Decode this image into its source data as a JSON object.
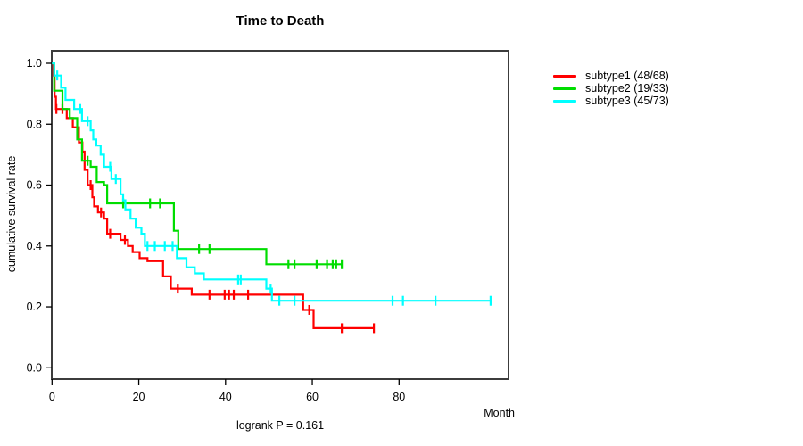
{
  "annotation": "logrank P = 0.161",
  "legend": {
    "items": [
      {
        "label": "subtype1 (48/68)",
        "color": "#ff0000"
      },
      {
        "label": "subtype2 (19/33)",
        "color": "#00dd00"
      },
      {
        "label": "subtype3 (45/73)",
        "color": "#00ffff"
      }
    ]
  },
  "chart_data": {
    "type": "line",
    "subtype": "kaplan-meier-step",
    "title": "Time to Death",
    "xlabel": "Month",
    "ylabel": "cumulative survival rate",
    "xlim": [
      0,
      105
    ],
    "ylim": [
      0,
      1.0
    ],
    "grid": false,
    "legend_position": "right-outside",
    "x_ticks": [
      {
        "v": 0,
        "label": "0"
      },
      {
        "v": 20,
        "label": "20"
      },
      {
        "v": 40,
        "label": "40"
      },
      {
        "v": 60,
        "label": "60"
      },
      {
        "v": 80,
        "label": "80"
      }
    ],
    "y_ticks": [
      {
        "v": 0.0,
        "label": "0.0"
      },
      {
        "v": 0.2,
        "label": "0.2"
      },
      {
        "v": 0.4,
        "label": "0.4"
      },
      {
        "v": 0.6,
        "label": "0.6"
      },
      {
        "v": 0.8,
        "label": "0.8"
      },
      {
        "v": 1.0,
        "label": "1.0"
      }
    ],
    "series": [
      {
        "name": "subtype1",
        "events_total": "48/68",
        "color": "#ff0000",
        "end_month": 74.2,
        "steps": [
          [
            0,
            1.0
          ],
          [
            0.3,
            0.96
          ],
          [
            0.6,
            0.89
          ],
          [
            0.9,
            0.85
          ],
          [
            3.4,
            0.82
          ],
          [
            4.8,
            0.79
          ],
          [
            6.2,
            0.74
          ],
          [
            7.0,
            0.71
          ],
          [
            7.5,
            0.65
          ],
          [
            8.2,
            0.6
          ],
          [
            9.3,
            0.56
          ],
          [
            9.7,
            0.53
          ],
          [
            10.6,
            0.51
          ],
          [
            12.0,
            0.49
          ],
          [
            12.7,
            0.44
          ],
          [
            15.8,
            0.42
          ],
          [
            17.5,
            0.4
          ],
          [
            18.6,
            0.38
          ],
          [
            20.2,
            0.36
          ],
          [
            22.0,
            0.35
          ],
          [
            25.6,
            0.3
          ],
          [
            27.4,
            0.26
          ],
          [
            32.2,
            0.24
          ],
          [
            57.9,
            0.19
          ],
          [
            60.3,
            0.13
          ]
        ],
        "censors": [
          [
            1.0,
            0.85
          ],
          [
            2.4,
            0.85
          ],
          [
            8.9,
            0.6
          ],
          [
            11.3,
            0.51
          ],
          [
            13.4,
            0.44
          ],
          [
            16.8,
            0.42
          ],
          [
            29.0,
            0.26
          ],
          [
            36.3,
            0.24
          ],
          [
            39.8,
            0.24
          ],
          [
            40.8,
            0.24
          ],
          [
            41.9,
            0.24
          ],
          [
            45.2,
            0.24
          ],
          [
            59.3,
            0.19
          ],
          [
            66.8,
            0.13
          ],
          [
            74.2,
            0.13
          ]
        ]
      },
      {
        "name": "subtype2",
        "events_total": "19/33",
        "color": "#00dd00",
        "end_month": 66.8,
        "steps": [
          [
            0,
            1.0
          ],
          [
            0.5,
            0.91
          ],
          [
            2.4,
            0.85
          ],
          [
            4.1,
            0.82
          ],
          [
            5.8,
            0.75
          ],
          [
            6.9,
            0.68
          ],
          [
            8.9,
            0.66
          ],
          [
            10.3,
            0.61
          ],
          [
            12.0,
            0.6
          ],
          [
            12.7,
            0.54
          ],
          [
            28.1,
            0.45
          ],
          [
            29.1,
            0.39
          ],
          [
            49.4,
            0.34
          ]
        ],
        "censors": [
          [
            8.2,
            0.68
          ],
          [
            16.4,
            0.54
          ],
          [
            22.6,
            0.54
          ],
          [
            24.9,
            0.54
          ],
          [
            33.9,
            0.39
          ],
          [
            36.3,
            0.39
          ],
          [
            54.5,
            0.34
          ],
          [
            55.9,
            0.34
          ],
          [
            61.0,
            0.34
          ],
          [
            63.4,
            0.34
          ],
          [
            64.7,
            0.34
          ],
          [
            65.5,
            0.34
          ],
          [
            66.8,
            0.34
          ]
        ]
      },
      {
        "name": "subtype3",
        "events_total": "45/73",
        "color": "#00ffff",
        "end_month": 101.1,
        "steps": [
          [
            0,
            1.0
          ],
          [
            0.5,
            0.96
          ],
          [
            2.1,
            0.92
          ],
          [
            3.1,
            0.88
          ],
          [
            5.1,
            0.85
          ],
          [
            6.9,
            0.81
          ],
          [
            8.9,
            0.78
          ],
          [
            9.5,
            0.75
          ],
          [
            10.2,
            0.73
          ],
          [
            11.2,
            0.7
          ],
          [
            12.0,
            0.66
          ],
          [
            13.7,
            0.62
          ],
          [
            15.8,
            0.57
          ],
          [
            16.4,
            0.55
          ],
          [
            16.9,
            0.52
          ],
          [
            18.1,
            0.49
          ],
          [
            19.3,
            0.46
          ],
          [
            20.6,
            0.44
          ],
          [
            21.4,
            0.4
          ],
          [
            28.8,
            0.36
          ],
          [
            31.0,
            0.33
          ],
          [
            32.9,
            0.31
          ],
          [
            35.0,
            0.29
          ],
          [
            49.4,
            0.26
          ],
          [
            50.7,
            0.22
          ]
        ],
        "censors": [
          [
            1.2,
            0.96
          ],
          [
            6.5,
            0.85
          ],
          [
            8.2,
            0.81
          ],
          [
            13.4,
            0.66
          ],
          [
            14.7,
            0.62
          ],
          [
            22.0,
            0.4
          ],
          [
            23.7,
            0.4
          ],
          [
            26.0,
            0.4
          ],
          [
            27.8,
            0.4
          ],
          [
            42.9,
            0.29
          ],
          [
            43.5,
            0.29
          ],
          [
            50.4,
            0.26
          ],
          [
            52.4,
            0.22
          ],
          [
            55.9,
            0.22
          ],
          [
            78.5,
            0.22
          ],
          [
            80.9,
            0.22
          ],
          [
            88.4,
            0.22
          ],
          [
            101.1,
            0.22
          ]
        ]
      }
    ]
  }
}
